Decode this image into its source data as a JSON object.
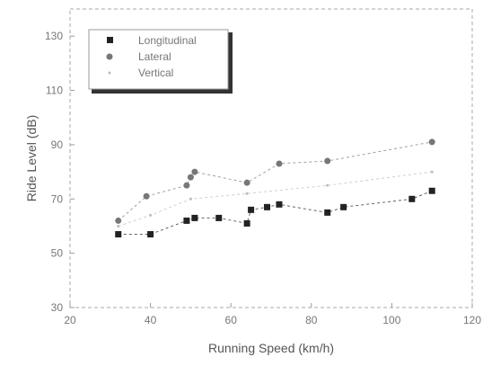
{
  "chart_data": {
    "type": "scatter",
    "xlabel": "Running Speed (km/h)",
    "ylabel": "Ride Level (dB)",
    "xlim": [
      20,
      120
    ],
    "ylim": [
      30,
      140
    ],
    "x_ticks": [
      "20",
      "40",
      "60",
      "80",
      "100",
      "120"
    ],
    "y_ticks": [
      "30",
      "50",
      "70",
      "90",
      "110",
      "130"
    ],
    "legend_position": "top-left",
    "series": [
      {
        "name": "Longitudinal",
        "marker": "square",
        "color": "#222222",
        "points": [
          [
            32,
            57
          ],
          [
            40,
            57
          ],
          [
            49,
            62
          ],
          [
            51,
            63
          ],
          [
            57,
            63
          ],
          [
            64,
            61
          ],
          [
            65,
            66
          ],
          [
            69,
            67
          ],
          [
            72,
            68
          ],
          [
            84,
            65
          ],
          [
            88,
            67
          ],
          [
            105,
            70
          ],
          [
            110,
            73
          ]
        ]
      },
      {
        "name": "Lateral",
        "marker": "circle",
        "color": "#777777",
        "points": [
          [
            32,
            62
          ],
          [
            39,
            71
          ],
          [
            49,
            75
          ],
          [
            50,
            78
          ],
          [
            51,
            80
          ],
          [
            64,
            76
          ],
          [
            72,
            83
          ],
          [
            84,
            84
          ],
          [
            110,
            91
          ]
        ]
      },
      {
        "name": "Vertical",
        "marker": "dot",
        "color": "#bbbbbb",
        "points": [
          [
            32,
            60
          ],
          [
            40,
            64
          ],
          [
            50,
            70
          ],
          [
            64,
            72
          ],
          [
            84,
            75
          ],
          [
            110,
            80
          ]
        ]
      }
    ]
  }
}
